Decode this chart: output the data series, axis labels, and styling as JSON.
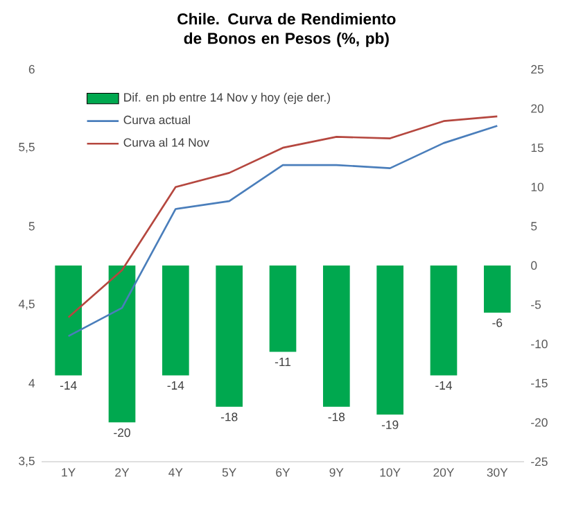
{
  "chart_data": {
    "type": "bar",
    "title": "Chile. Curva de Rendimiento de Bonos en Pesos (%, pb)",
    "categories": [
      "1Y",
      "2Y",
      "4Y",
      "5Y",
      "6Y",
      "9Y",
      "10Y",
      "20Y",
      "30Y"
    ],
    "series": [
      {
        "name": "Dif. en pb entre 14 Nov y hoy (eje der.)",
        "axis": "y2",
        "color": "#00a84f",
        "values": [
          -14,
          -20,
          -14,
          -18,
          -11,
          -18,
          -19,
          -14,
          -6
        ],
        "value_labels": [
          "-14",
          "-20",
          "-14",
          "-18",
          "-11",
          "-18",
          "-19",
          "-14",
          "-6"
        ]
      },
      {
        "name": "Curva actual",
        "type": "line",
        "color": "#4a7ebb",
        "values": [
          4.3,
          4.48,
          5.11,
          5.16,
          5.39,
          5.39,
          5.37,
          5.53,
          5.64
        ]
      },
      {
        "name": "Curva al 14 Nov",
        "type": "line",
        "color": "#b5473f",
        "values": [
          4.42,
          4.72,
          5.25,
          5.34,
          5.5,
          5.57,
          5.56,
          5.67,
          5.7
        ]
      }
    ],
    "ylim": [
      3.5,
      6
    ],
    "yticks": [
      {
        "value": 3.5,
        "label": "3,5"
      },
      4,
      {
        "value": 4.5,
        "label": "4,5"
      },
      5,
      {
        "value": 5.5,
        "label": "5,5"
      },
      6
    ],
    "y2lim": [
      -25,
      25
    ],
    "y2ticks": [
      -25,
      -20,
      -15,
      -10,
      -5,
      0,
      5,
      10,
      15,
      20,
      25
    ],
    "legend": "top left",
    "grid": false
  }
}
